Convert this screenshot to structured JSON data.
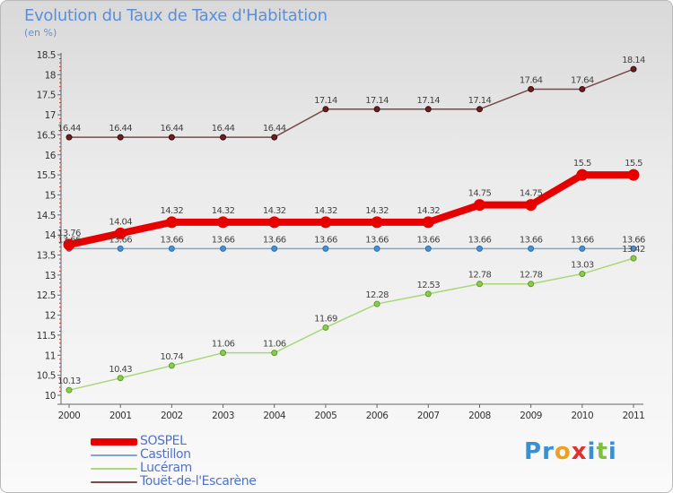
{
  "title": "Evolution du Taux de Taxe d'Habitation",
  "unit": "(en %)",
  "logo": {
    "letters": [
      {
        "char": "P",
        "color": "#3a8fd0"
      },
      {
        "char": "r",
        "color": "#3a8fd0"
      },
      {
        "char": "o",
        "color": "#f0a020"
      },
      {
        "char": "x",
        "color": "#e03030"
      },
      {
        "char": "i",
        "color": "#3a8fd0"
      },
      {
        "char": "t",
        "color": "#80c040"
      },
      {
        "char": "i",
        "color": "#3a8fd0"
      }
    ]
  },
  "chart_data": {
    "type": "line",
    "categories": [
      "2000",
      "2001",
      "2002",
      "2003",
      "2004",
      "2005",
      "2006",
      "2007",
      "2008",
      "2009",
      "2010",
      "2011"
    ],
    "ylim": [
      10,
      18.5
    ],
    "yticks": [
      "10",
      "10.5",
      "11",
      "11.5",
      "12",
      "12.5",
      "13",
      "13.5",
      "14",
      "14.5",
      "15",
      "15.5",
      "16",
      "16.5",
      "17",
      "17.5",
      "18",
      "18.5"
    ],
    "grid": false,
    "legend": "bottom-left",
    "series": [
      {
        "name": "SOSPEL",
        "color": "#e80000",
        "values": [
          13.76,
          14.04,
          14.32,
          14.32,
          14.32,
          14.32,
          14.32,
          14.32,
          14.75,
          14.75,
          15.5,
          15.5
        ],
        "labels": [
          "13.76",
          "14.04",
          "14.32",
          "14.32",
          "14.32",
          "14.32",
          "14.32",
          "14.32",
          "14.75",
          "14.75",
          "15.5",
          "15.5"
        ]
      },
      {
        "name": "Castillon",
        "color": "#7fa6cc",
        "values": [
          13.66,
          13.66,
          13.66,
          13.66,
          13.66,
          13.66,
          13.66,
          13.66,
          13.66,
          13.66,
          13.66,
          13.66
        ],
        "labels": [
          "13.66",
          "13.66",
          "13.66",
          "13.66",
          "13.66",
          "13.66",
          "13.66",
          "13.66",
          "13.66",
          "13.66",
          "13.66",
          "13.66"
        ]
      },
      {
        "name": "Lucéram",
        "color": "#a8d878",
        "values": [
          10.13,
          10.43,
          10.74,
          11.06,
          11.06,
          11.69,
          12.28,
          12.53,
          12.78,
          12.78,
          13.03,
          13.42
        ],
        "labels": [
          "10.13",
          "10.43",
          "10.74",
          "11.06",
          "11.06",
          "11.69",
          "12.28",
          "12.53",
          "12.78",
          "12.78",
          "13.03",
          "13.42"
        ]
      },
      {
        "name": "Touët-de-l'Escarène",
        "color": "#7a4a4a",
        "values": [
          16.44,
          16.44,
          16.44,
          16.44,
          16.44,
          17.14,
          17.14,
          17.14,
          17.14,
          17.64,
          17.64,
          18.14
        ],
        "labels": [
          "16.44",
          "16.44",
          "16.44",
          "16.44",
          "16.44",
          "17.14",
          "17.14",
          "17.14",
          "17.14",
          "17.64",
          "17.64",
          "18.14"
        ]
      }
    ]
  }
}
